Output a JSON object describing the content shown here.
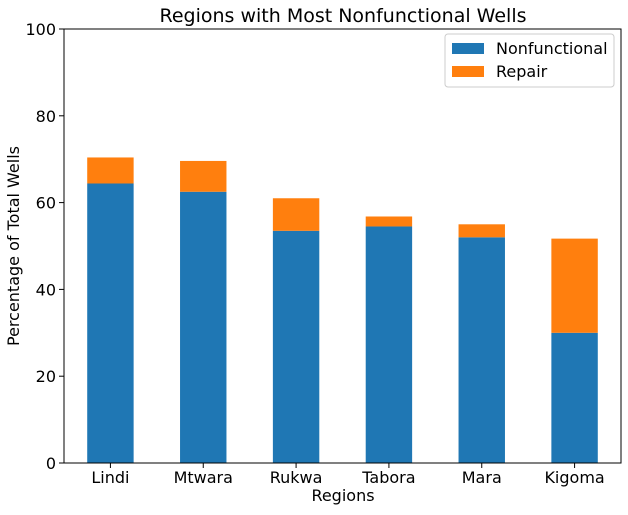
{
  "chart_data": {
    "type": "bar",
    "stacked": true,
    "title": "Regions with Most Nonfunctional Wells",
    "xlabel": "Regions",
    "ylabel": "Percentage of Total Wells",
    "ylim": [
      0,
      100
    ],
    "yticks": [
      0,
      20,
      40,
      60,
      80,
      100
    ],
    "categories": [
      "Lindi",
      "Mtwara",
      "Rukwa",
      "Tabora",
      "Mara",
      "Kigoma"
    ],
    "series": [
      {
        "name": "Nonfunctional",
        "color": "#1f77b4",
        "values": [
          64.4,
          62.5,
          53.5,
          54.5,
          52.0,
          30.0
        ]
      },
      {
        "name": "Repair",
        "color": "#ff7f0e",
        "values": [
          6.0,
          7.1,
          7.5,
          2.3,
          3.0,
          21.7
        ]
      }
    ],
    "legend_position": "top-right",
    "grid": false
  }
}
